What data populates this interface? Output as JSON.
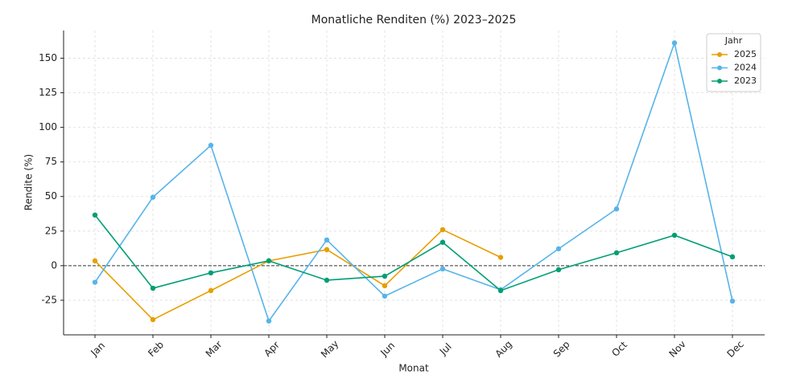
{
  "chart_data": {
    "type": "line",
    "title": "Monatliche Renditen (%) 2023–2025",
    "x_label": "Monat",
    "y_label": "Rendite (%)",
    "categories": [
      "Jan",
      "Feb",
      "Mar",
      "Apr",
      "May",
      "Jun",
      "Jul",
      "Aug",
      "Sep",
      "Oct",
      "Nov",
      "Dec"
    ],
    "series": [
      {
        "name": "2025",
        "color": "#e69f00",
        "values": [
          3.5,
          -39,
          -18,
          3.5,
          11.6,
          -14.5,
          26,
          6,
          null,
          null,
          null,
          null
        ]
      },
      {
        "name": "2024",
        "color": "#56b4e9",
        "values": [
          -12,
          49.5,
          87,
          -40,
          18.6,
          -22,
          -2.3,
          -17.4,
          12.2,
          41,
          161,
          -25.6
        ]
      },
      {
        "name": "2023",
        "color": "#009e73",
        "values": [
          36.6,
          -16.3,
          -5.2,
          3.5,
          -10.5,
          -7.6,
          16.9,
          -18,
          -2.9,
          9.3,
          22,
          6.4
        ]
      }
    ],
    "ylim": [
      -50,
      170
    ],
    "yticks": [
      -25,
      0,
      25,
      50,
      75,
      100,
      125,
      150
    ],
    "grid": true,
    "hline": 0,
    "legend": "upper right",
    "legend_title": "Jahr"
  }
}
